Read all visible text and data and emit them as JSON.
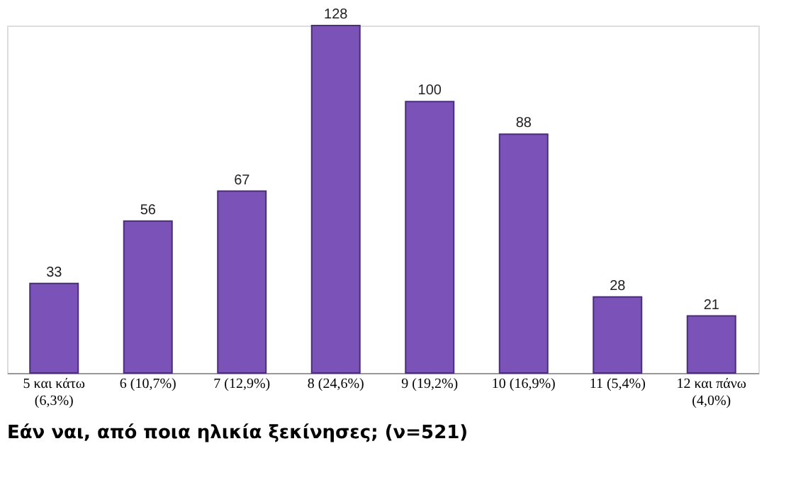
{
  "chart_data": {
    "type": "bar",
    "title": "Εάν ναι, από ποια ηλικία ξεκίνησες; (ν=521)",
    "categories": [
      "5 και κάτω (6,3%)",
      "6 (10,7%)",
      "7 (12,9%)",
      "8 (24,6%)",
      "9 (19,2%)",
      "10 (16,9%)",
      "11 (5,4%)",
      "12 και πάνω (4,0%)"
    ],
    "values": [
      33,
      56,
      67,
      128,
      100,
      88,
      28,
      21
    ],
    "color": "#7b52b8",
    "data_labels": true,
    "grid": false
  }
}
